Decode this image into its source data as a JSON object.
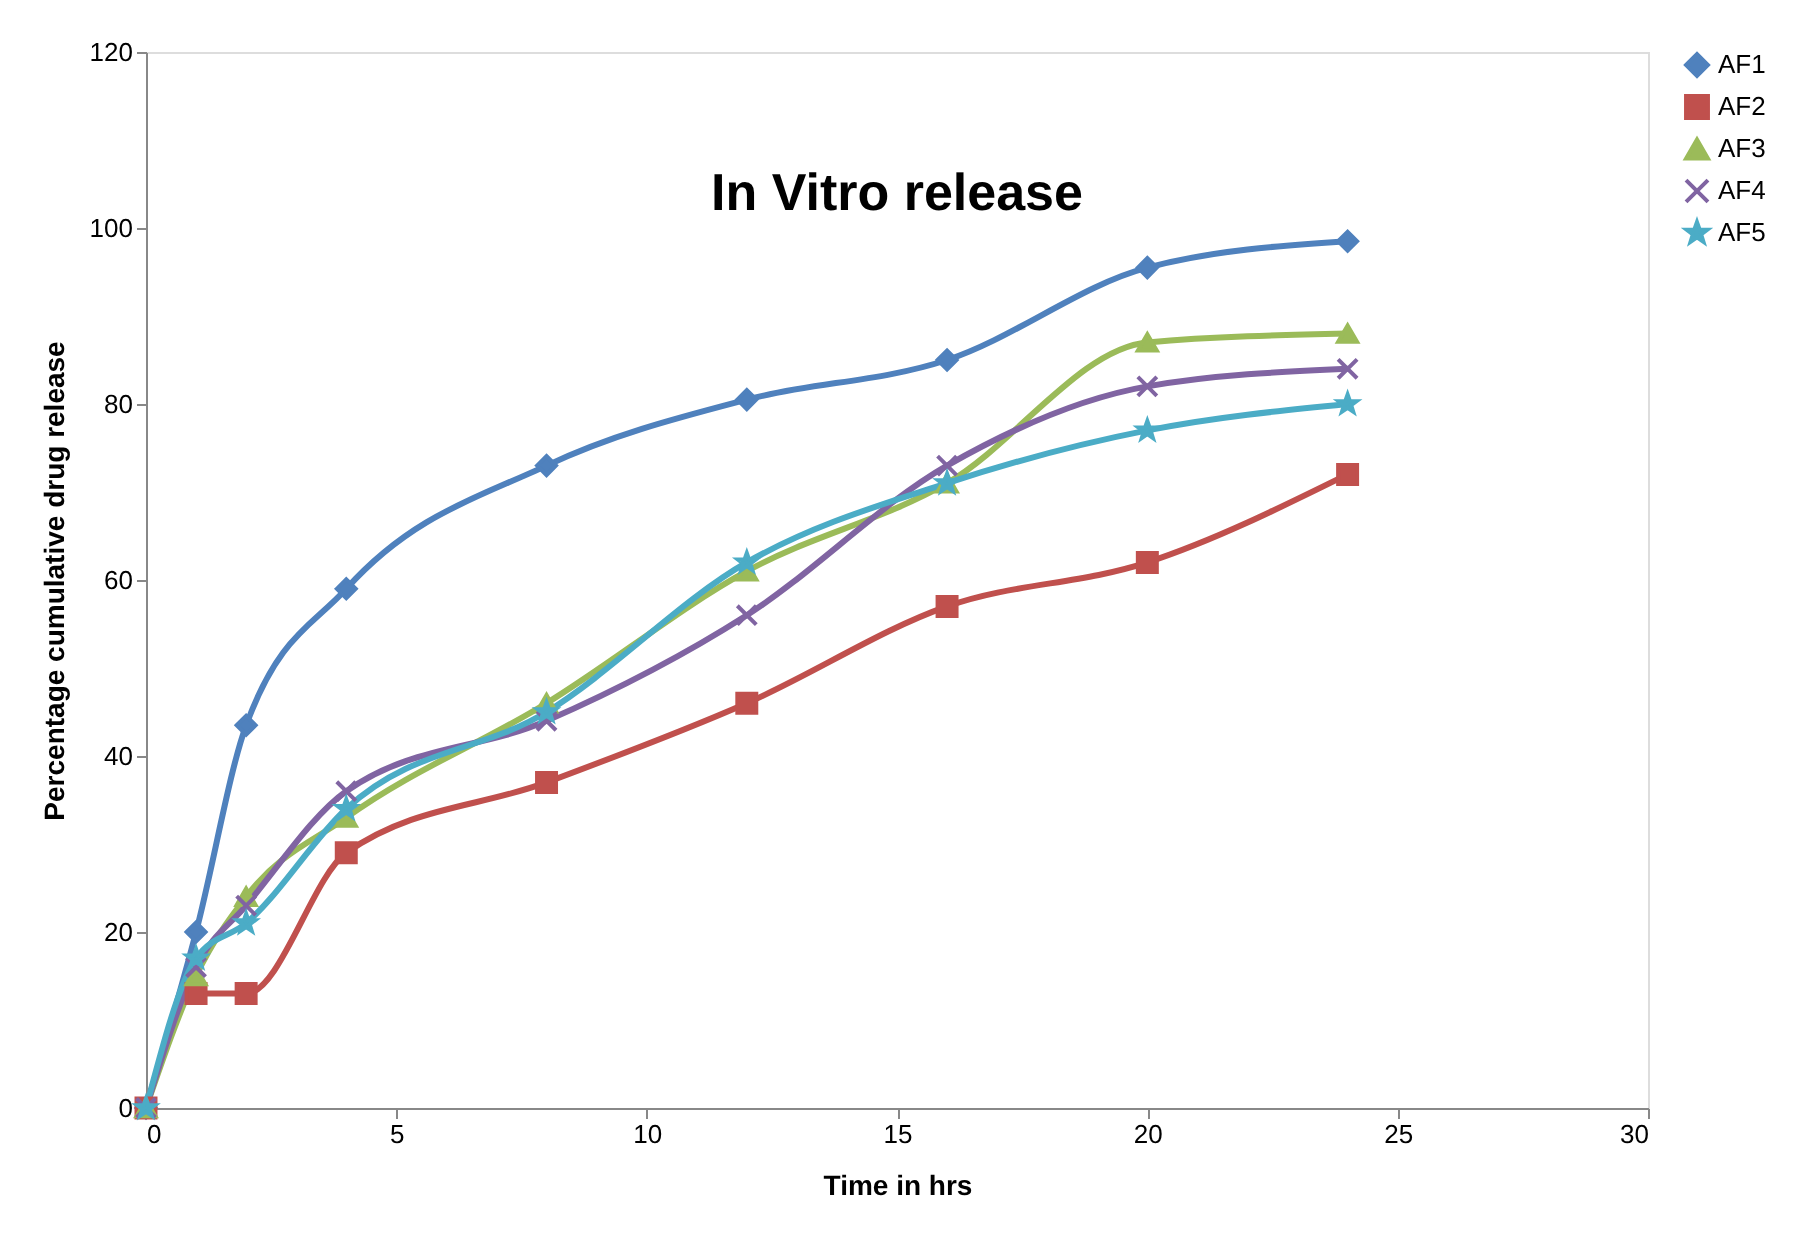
{
  "chart_data": {
    "type": "line",
    "title": "In Vitro release",
    "xlabel": "Time in hrs",
    "ylabel": "Percentage cumulative drug release",
    "x": [
      0,
      1,
      2,
      4,
      8,
      12,
      16,
      20,
      24
    ],
    "series": [
      {
        "name": "AF1",
        "color": "#4f81bd",
        "marker": "diamond",
        "values": [
          0,
          20,
          43.5,
          59,
          73,
          80.5,
          85,
          95.5,
          98.5
        ]
      },
      {
        "name": "AF2",
        "color": "#c0504d",
        "marker": "square",
        "values": [
          0,
          13,
          13,
          29,
          37,
          46,
          57,
          62,
          72
        ]
      },
      {
        "name": "AF3",
        "color": "#9bbb59",
        "marker": "triangle",
        "values": [
          0,
          15,
          24,
          33,
          46,
          61,
          71,
          87,
          88
        ]
      },
      {
        "name": "AF4",
        "color": "#8064a2",
        "marker": "cross",
        "values": [
          0,
          16,
          23,
          36,
          44,
          56,
          73,
          82,
          84
        ]
      },
      {
        "name": "AF5",
        "color": "#4bacc6",
        "marker": "star",
        "values": [
          0,
          17,
          21,
          34,
          45,
          62,
          71,
          77,
          80
        ]
      }
    ],
    "xlim": [
      0,
      30
    ],
    "xticks": [
      0,
      5,
      10,
      15,
      20,
      25,
      30
    ],
    "ylim": [
      0,
      120
    ],
    "yticks": [
      0,
      20,
      40,
      60,
      80,
      100,
      120
    ],
    "grid": false,
    "legend": "right",
    "line_style": "solid"
  }
}
